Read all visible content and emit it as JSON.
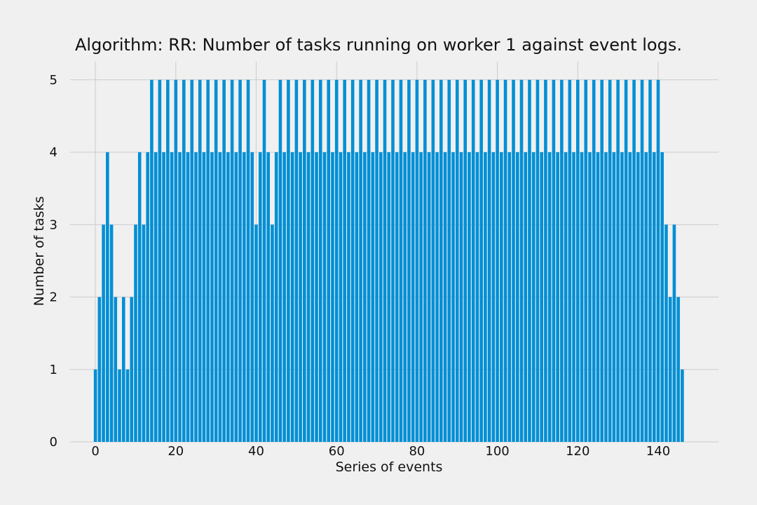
{
  "chart_data": {
    "type": "bar",
    "title": "Algorithm: RR: Number of tasks running on worker 1 against event logs.",
    "xlabel": "Series of events",
    "ylabel": "Number of tasks",
    "xlim": [
      -6.3,
      155
    ],
    "ylim": [
      0,
      5.25
    ],
    "xticks": [
      0,
      20,
      40,
      60,
      80,
      100,
      120,
      140
    ],
    "yticks": [
      0,
      1,
      2,
      3,
      4,
      5
    ],
    "grid": true,
    "bar_color": "#008fd5",
    "background": "#f0f0f0",
    "x": [
      0,
      1,
      2,
      3,
      4,
      5,
      6,
      7,
      8,
      9,
      10,
      11,
      12,
      13,
      14,
      15,
      16,
      17,
      18,
      19,
      20,
      21,
      22,
      23,
      24,
      25,
      26,
      27,
      28,
      29,
      30,
      31,
      32,
      33,
      34,
      35,
      36,
      37,
      38,
      39,
      40,
      41,
      42,
      43,
      44,
      45,
      46,
      47,
      48,
      49,
      50,
      51,
      52,
      53,
      54,
      55,
      56,
      57,
      58,
      59,
      60,
      61,
      62,
      63,
      64,
      65,
      66,
      67,
      68,
      69,
      70,
      71,
      72,
      73,
      74,
      75,
      76,
      77,
      78,
      79,
      80,
      81,
      82,
      83,
      84,
      85,
      86,
      87,
      88,
      89,
      90,
      91,
      92,
      93,
      94,
      95,
      96,
      97,
      98,
      99,
      100,
      101,
      102,
      103,
      104,
      105,
      106,
      107,
      108,
      109,
      110,
      111,
      112,
      113,
      114,
      115,
      116,
      117,
      118,
      119,
      120,
      121,
      122,
      123,
      124,
      125,
      126,
      127,
      128,
      129,
      130,
      131,
      132,
      133,
      134,
      135,
      136,
      137,
      138,
      139,
      140,
      141,
      142,
      143,
      144,
      145,
      146
    ],
    "values": [
      1,
      2,
      3,
      4,
      3,
      2,
      1,
      2,
      1,
      2,
      3,
      4,
      3,
      4,
      5,
      4,
      5,
      4,
      5,
      4,
      5,
      4,
      5,
      4,
      5,
      4,
      5,
      4,
      5,
      4,
      5,
      4,
      5,
      4,
      5,
      4,
      5,
      4,
      5,
      4,
      3,
      4,
      5,
      4,
      3,
      4,
      5,
      4,
      5,
      4,
      5,
      4,
      5,
      4,
      5,
      4,
      5,
      4,
      5,
      4,
      5,
      4,
      5,
      4,
      5,
      4,
      5,
      4,
      5,
      4,
      5,
      4,
      5,
      4,
      5,
      4,
      5,
      4,
      5,
      4,
      5,
      4,
      5,
      4,
      5,
      4,
      5,
      4,
      5,
      4,
      5,
      4,
      5,
      4,
      5,
      4,
      5,
      4,
      5,
      4,
      5,
      4,
      5,
      4,
      5,
      4,
      5,
      4,
      5,
      4,
      5,
      4,
      5,
      4,
      5,
      4,
      5,
      4,
      5,
      4,
      5,
      4,
      5,
      4,
      5,
      4,
      5,
      4,
      5,
      4,
      5,
      4,
      5,
      4,
      5,
      4,
      5,
      4,
      5,
      4,
      5,
      4,
      3,
      2,
      3,
      2,
      1
    ]
  }
}
